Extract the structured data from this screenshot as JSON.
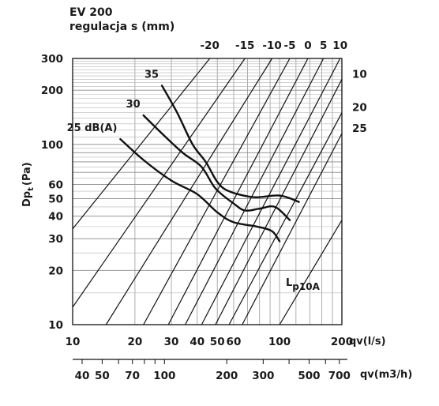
{
  "chart_data": {
    "type": "line",
    "title": "EV 200",
    "subtitle": "regulacja s (mm)",
    "ylabel": "Dp",
    "ylabel_sub": "t",
    "ylabel_unit": "(Pa)",
    "xlabel": "qv(l/s)",
    "x2label": "qv(m3/h)",
    "noise_label_main": "L",
    "noise_label_sub": "p10A",
    "x_scale": "log",
    "y_scale": "log",
    "xlim": [
      10,
      200
    ],
    "ylim": [
      10,
      300
    ],
    "grid": true,
    "x_ticks": [
      "10",
      "20",
      "30",
      "40",
      "50",
      "60",
      "100",
      "200"
    ],
    "x_tick_values": [
      10,
      20,
      30,
      40,
      50,
      60,
      100,
      200
    ],
    "y_ticks": [
      "10",
      "20",
      "30",
      "40",
      "50",
      "60",
      "100",
      "200",
      "300"
    ],
    "y_tick_values": [
      10,
      20,
      30,
      40,
      50,
      60,
      100,
      200,
      300
    ],
    "m3h_ticks": [
      "40",
      "50",
      "70",
      "100",
      "200",
      "300",
      "500",
      "700"
    ],
    "m3h_tick_values": [
      40,
      50,
      70,
      100,
      200,
      300,
      500,
      700
    ],
    "regulation_series": [
      {
        "name": "-20",
        "label_pos": "top",
        "points": [
          [
            10,
            34
          ],
          [
            46,
            300
          ]
        ]
      },
      {
        "name": "-15",
        "label_pos": "top",
        "points": [
          [
            10,
            12.5
          ],
          [
            68,
            300
          ]
        ]
      },
      {
        "name": "-10",
        "label_pos": "top",
        "points": [
          [
            14.5,
            10
          ],
          [
            92,
            300
          ]
        ]
      },
      {
        "name": "-5",
        "label_pos": "top",
        "points": [
          [
            22,
            10
          ],
          [
            112,
            300
          ]
        ]
      },
      {
        "name": "0",
        "label_pos": "top",
        "points": [
          [
            29,
            10
          ],
          [
            137,
            300
          ]
        ]
      },
      {
        "name": "5",
        "label_pos": "top",
        "points": [
          [
            35,
            10
          ],
          [
            163,
            300
          ]
        ]
      },
      {
        "name": "10",
        "label_pos": "top",
        "points": [
          [
            42,
            10
          ],
          [
            196,
            300
          ]
        ]
      },
      {
        "name": "10",
        "label_pos": "right",
        "points": [
          [
            49,
            10
          ],
          [
            200,
            230
          ]
        ]
      },
      {
        "name": "20",
        "label_pos": "right",
        "points": [
          [
            57,
            10
          ],
          [
            200,
            150
          ]
        ]
      },
      {
        "name": "25",
        "label_pos": "right",
        "points": [
          [
            66,
            10
          ],
          [
            200,
            115
          ]
        ]
      }
    ],
    "regulation_lines_unlabeled": [
      [
        [
          100,
          10
        ],
        [
          200,
          38
        ]
      ]
    ],
    "noise_series": [
      {
        "name": "35",
        "points": [
          [
            27,
            212
          ],
          [
            32,
            150
          ],
          [
            38,
            100
          ],
          [
            44,
            80
          ],
          [
            50,
            62
          ],
          [
            57,
            55
          ],
          [
            75,
            51
          ],
          [
            100,
            52
          ],
          [
            124,
            48
          ]
        ]
      },
      {
        "name": "30",
        "points": [
          [
            22,
            145
          ],
          [
            27,
            115
          ],
          [
            34,
            90
          ],
          [
            42,
            75
          ],
          [
            49,
            57
          ],
          [
            60,
            47
          ],
          [
            68,
            43
          ],
          [
            80,
            44
          ],
          [
            95,
            45
          ],
          [
            112,
            38
          ]
        ]
      },
      {
        "name": "25 dB(A)",
        "points": [
          [
            17,
            107
          ],
          [
            22,
            82
          ],
          [
            30,
            63
          ],
          [
            40,
            53
          ],
          [
            50,
            42
          ],
          [
            60,
            37
          ],
          [
            78,
            35
          ],
          [
            92,
            33
          ],
          [
            100,
            29
          ]
        ]
      }
    ]
  }
}
